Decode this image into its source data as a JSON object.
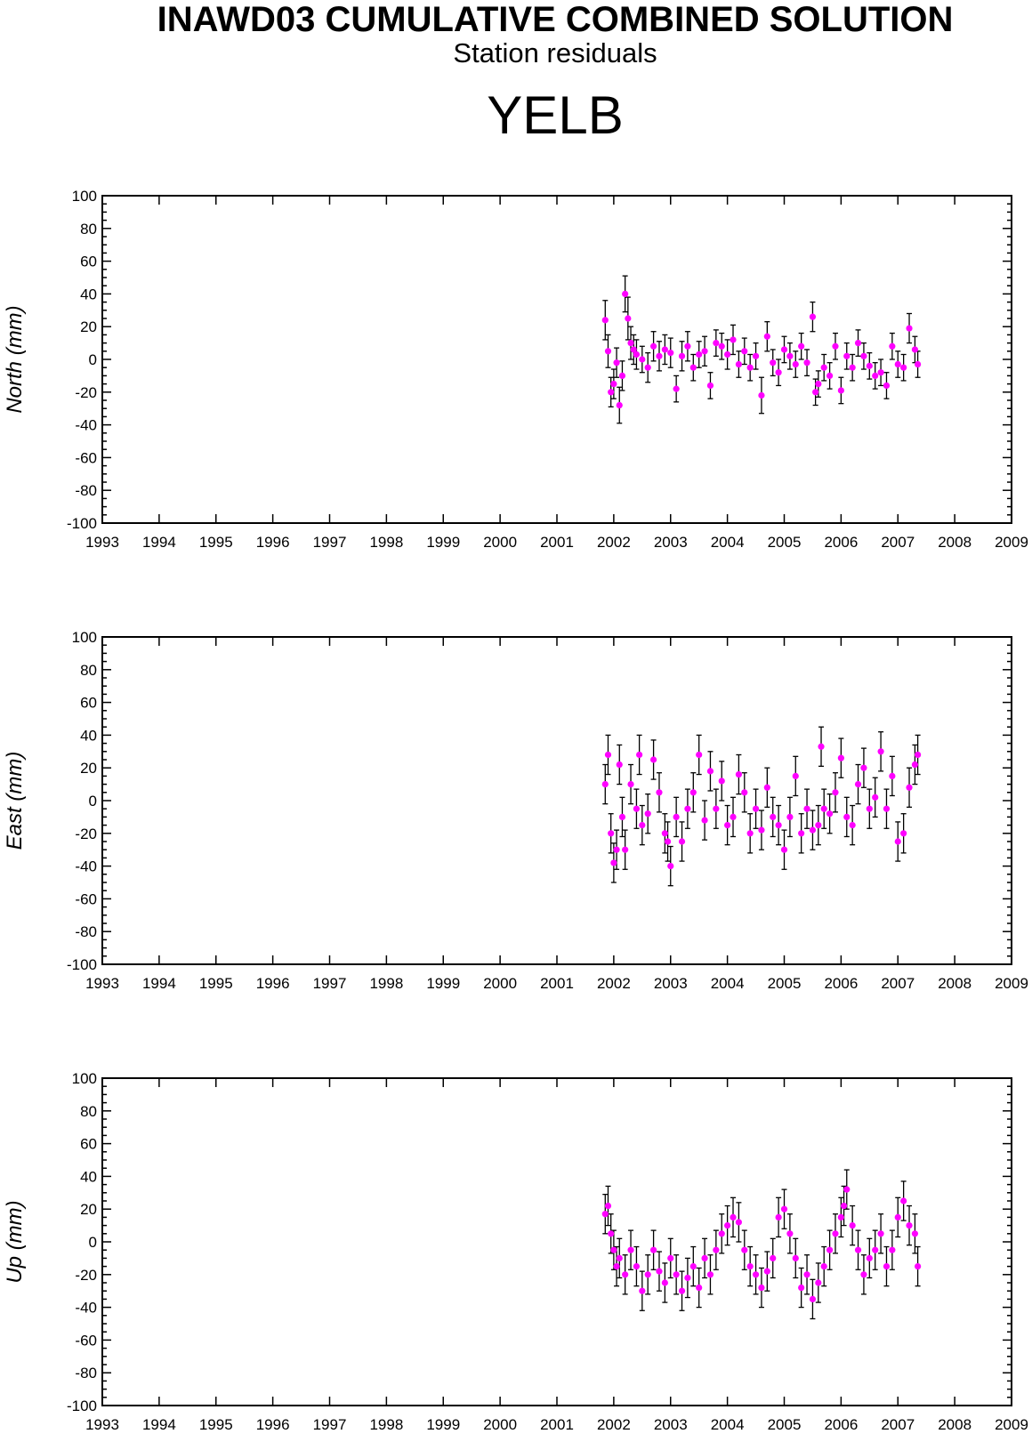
{
  "header": {
    "title": "INAWD03 CUMULATIVE COMBINED SOLUTION",
    "subtitle": "Station residuals",
    "station": "YELB"
  },
  "colors": {
    "point": "#ff00ff",
    "errorbar": "#000000",
    "axis": "#000000",
    "background": "#ffffff"
  },
  "chart_data": [
    {
      "type": "scatter",
      "ylabel": "North (mm)",
      "xlim": [
        1993,
        2009
      ],
      "ylim": [
        -100,
        100
      ],
      "x_ticks": [
        "1993",
        "1994",
        "1995",
        "1996",
        "1997",
        "1998",
        "1999",
        "2000",
        "2001",
        "2002",
        "2003",
        "2004",
        "2005",
        "2006",
        "2007",
        "2008",
        "2009"
      ],
      "y_ticks": [
        "100",
        "80",
        "60",
        "40",
        "20",
        "0",
        "-20",
        "-40",
        "-60",
        "-80",
        "-100"
      ],
      "grid": false,
      "series": [
        {
          "x": [
            2001.85,
            2001.9,
            2001.95,
            2002.0,
            2002.05,
            2002.1,
            2002.15,
            2002.2,
            2002.25,
            2002.3,
            2002.35,
            2002.4,
            2002.5,
            2002.6,
            2002.7,
            2002.8,
            2002.9,
            2003.0,
            2003.1,
            2003.2,
            2003.3,
            2003.4,
            2003.5,
            2003.6,
            2003.7,
            2003.8,
            2003.9,
            2004.0,
            2004.1,
            2004.2,
            2004.3,
            2004.4,
            2004.5,
            2004.6,
            2004.7,
            2004.8,
            2004.9,
            2005.0,
            2005.1,
            2005.2,
            2005.3,
            2005.4,
            2005.5,
            2005.55,
            2005.6,
            2005.7,
            2005.8,
            2005.9,
            2006.0,
            2006.1,
            2006.2,
            2006.3,
            2006.4,
            2006.5,
            2006.6,
            2006.7,
            2006.8,
            2006.9,
            2007.0,
            2007.1,
            2007.2,
            2007.3,
            2007.35
          ],
          "y": [
            24,
            5,
            -20,
            -15,
            -2,
            -28,
            -10,
            40,
            25,
            10,
            6,
            3,
            0,
            -5,
            8,
            2,
            6,
            4,
            -18,
            2,
            8,
            -5,
            3,
            5,
            -16,
            10,
            8,
            3,
            12,
            -3,
            5,
            -5,
            2,
            -22,
            14,
            -2,
            -8,
            6,
            2,
            -3,
            8,
            -2,
            26,
            -20,
            -15,
            -5,
            -10,
            8,
            -19,
            2,
            -5,
            10,
            2,
            -4,
            -10,
            -8,
            -16,
            8,
            -3,
            -5,
            19,
            6,
            -3
          ],
          "err": [
            12,
            10,
            9,
            9,
            9,
            11,
            9,
            11,
            13,
            10,
            9,
            9,
            8,
            9,
            9,
            9,
            9,
            9,
            8,
            9,
            9,
            8,
            8,
            9,
            8,
            8,
            8,
            9,
            9,
            8,
            8,
            8,
            8,
            11,
            9,
            8,
            8,
            8,
            8,
            8,
            8,
            8,
            9,
            8,
            8,
            8,
            8,
            8,
            8,
            8,
            8,
            8,
            8,
            8,
            8,
            8,
            8,
            8,
            8,
            8,
            9,
            8,
            8
          ]
        }
      ]
    },
    {
      "type": "scatter",
      "ylabel": "East (mm)",
      "xlim": [
        1993,
        2009
      ],
      "ylim": [
        -100,
        100
      ],
      "x_ticks": [
        "1993",
        "1994",
        "1995",
        "1996",
        "1997",
        "1998",
        "1999",
        "2000",
        "2001",
        "2002",
        "2003",
        "2004",
        "2005",
        "2006",
        "2007",
        "2008",
        "2009"
      ],
      "y_ticks": [
        "100",
        "80",
        "60",
        "40",
        "20",
        "0",
        "-20",
        "-40",
        "-60",
        "-80",
        "-100"
      ],
      "grid": false,
      "series": [
        {
          "x": [
            2001.85,
            2001.9,
            2001.95,
            2002.0,
            2002.05,
            2002.1,
            2002.15,
            2002.2,
            2002.3,
            2002.4,
            2002.45,
            2002.5,
            2002.6,
            2002.7,
            2002.8,
            2002.9,
            2002.95,
            2003.0,
            2003.1,
            2003.2,
            2003.3,
            2003.4,
            2003.5,
            2003.6,
            2003.7,
            2003.8,
            2003.9,
            2004.0,
            2004.1,
            2004.2,
            2004.3,
            2004.4,
            2004.5,
            2004.6,
            2004.7,
            2004.8,
            2004.9,
            2005.0,
            2005.1,
            2005.2,
            2005.3,
            2005.4,
            2005.5,
            2005.6,
            2005.65,
            2005.7,
            2005.8,
            2005.9,
            2006.0,
            2006.1,
            2006.2,
            2006.3,
            2006.4,
            2006.5,
            2006.6,
            2006.7,
            2006.8,
            2006.9,
            2007.0,
            2007.1,
            2007.2,
            2007.3,
            2007.35
          ],
          "y": [
            10,
            28,
            -20,
            -38,
            -30,
            22,
            -10,
            -30,
            10,
            -5,
            28,
            -15,
            -8,
            25,
            5,
            -20,
            -25,
            -40,
            -10,
            -25,
            -5,
            5,
            28,
            -12,
            18,
            -5,
            12,
            -15,
            -10,
            16,
            5,
            -20,
            -5,
            -18,
            8,
            -10,
            -15,
            -30,
            -10,
            15,
            -20,
            -5,
            -18,
            -15,
            33,
            -5,
            -8,
            5,
            26,
            -10,
            -15,
            10,
            20,
            -5,
            2,
            30,
            -5,
            15,
            -25,
            -20,
            8,
            22,
            28
          ]
        }
      ]
    },
    {
      "type": "scatter",
      "ylabel": "Up (mm)",
      "xlim": [
        1993,
        2009
      ],
      "ylim": [
        -100,
        100
      ],
      "x_ticks": [
        "1993",
        "1994",
        "1995",
        "1996",
        "1997",
        "1998",
        "1999",
        "2000",
        "2001",
        "2002",
        "2003",
        "2004",
        "2005",
        "2006",
        "2007",
        "2008",
        "2009"
      ],
      "y_ticks": [
        "100",
        "80",
        "60",
        "40",
        "20",
        "0",
        "-20",
        "-40",
        "-60",
        "-80",
        "-100"
      ],
      "grid": false,
      "series": [
        {
          "x": [
            2001.85,
            2001.9,
            2001.95,
            2002.0,
            2002.05,
            2002.1,
            2002.2,
            2002.3,
            2002.4,
            2002.5,
            2002.6,
            2002.7,
            2002.8,
            2002.9,
            2003.0,
            2003.1,
            2003.2,
            2003.3,
            2003.4,
            2003.5,
            2003.6,
            2003.7,
            2003.8,
            2003.9,
            2004.0,
            2004.1,
            2004.2,
            2004.3,
            2004.4,
            2004.5,
            2004.6,
            2004.7,
            2004.8,
            2004.9,
            2005.0,
            2005.1,
            2005.2,
            2005.3,
            2005.4,
            2005.5,
            2005.6,
            2005.7,
            2005.8,
            2005.9,
            2006.0,
            2006.05,
            2006.1,
            2006.2,
            2006.3,
            2006.4,
            2006.5,
            2006.6,
            2006.7,
            2006.8,
            2006.9,
            2007.0,
            2007.1,
            2007.2,
            2007.3,
            2007.35
          ],
          "y": [
            17,
            22,
            5,
            -5,
            -15,
            -10,
            -20,
            -5,
            -15,
            -30,
            -20,
            -5,
            -18,
            -25,
            -10,
            -20,
            -30,
            -22,
            -15,
            -28,
            -10,
            -20,
            -5,
            5,
            10,
            15,
            12,
            -5,
            -15,
            -20,
            -28,
            -18,
            -10,
            15,
            20,
            5,
            -10,
            -28,
            -20,
            -35,
            -25,
            -15,
            -5,
            5,
            15,
            22,
            32,
            10,
            -5,
            -20,
            -10,
            -5,
            5,
            -15,
            -5,
            15,
            25,
            10,
            5,
            -15
          ]
        }
      ]
    }
  ]
}
